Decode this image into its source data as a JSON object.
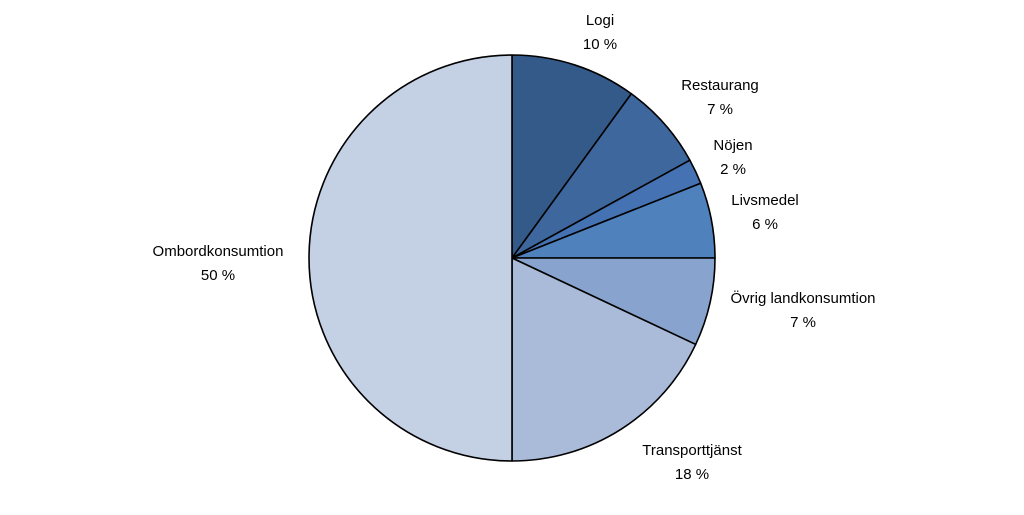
{
  "chart_data": {
    "type": "pie",
    "start_angle": "12 o'clock",
    "direction": "clockwise",
    "slices": [
      {
        "label": "Logi",
        "value_label": "10 %",
        "value": 10,
        "color": "#345a8a"
      },
      {
        "label": "Restaurang",
        "value_label": "7 %",
        "value": 7,
        "color": "#3d679d"
      },
      {
        "label": "Nöjen",
        "value_label": "2 %",
        "value": 2,
        "color": "#4572b2"
      },
      {
        "label": "Livsmedel",
        "value_label": "6 %",
        "value": 6,
        "color": "#4f81bd"
      },
      {
        "label": "Övrig landkonsumtion",
        "value_label": "7 %",
        "value": 7,
        "color": "#88a3cd"
      },
      {
        "label": "Transporttjänst",
        "value_label": "18 %",
        "value": 18,
        "color": "#aabbda"
      },
      {
        "label": "Ombordkonsumtion",
        "value_label": "50 %",
        "value": 50,
        "color": "#c4d0e4"
      }
    ],
    "legend": "none",
    "labels": "outside, category and percentage"
  }
}
